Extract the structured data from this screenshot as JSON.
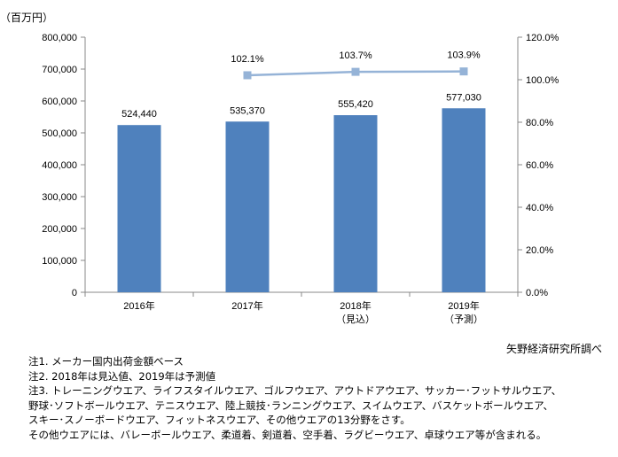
{
  "chart_data": {
    "type": "bar",
    "y_unit_label": "（百万円）",
    "categories": [
      [
        "2016年"
      ],
      [
        "2017年"
      ],
      [
        "2018年",
        "（見込）"
      ],
      [
        "2019年",
        "（予測）"
      ]
    ],
    "series": [
      {
        "type": "bar",
        "axis": "left",
        "values": [
          524440,
          535370,
          555420,
          577030
        ],
        "labels": [
          "524,440",
          "535,370",
          "555,420",
          "577,030"
        ],
        "color": "#4F81BD"
      },
      {
        "type": "line",
        "axis": "right",
        "values": [
          null,
          102.1,
          103.7,
          103.9
        ],
        "labels": [
          "",
          "102.1%",
          "103.7%",
          "103.9%"
        ],
        "color": "#95B3D7"
      }
    ],
    "ylim_left": [
      0,
      800000
    ],
    "yticks_left": [
      0,
      100000,
      200000,
      300000,
      400000,
      500000,
      600000,
      700000,
      800000
    ],
    "ytick_labels_left": [
      "0",
      "100,000",
      "200,000",
      "300,000",
      "400,000",
      "500,000",
      "600,000",
      "700,000",
      "800,000"
    ],
    "ylim_right": [
      0,
      120
    ],
    "yticks_right": [
      0,
      20,
      40,
      60,
      80,
      100,
      120
    ],
    "ytick_labels_right": [
      "0.0%",
      "20.0%",
      "40.0%",
      "60.0%",
      "80.0%",
      "100.0%",
      "120.0%"
    ],
    "grid": false,
    "legend": "none"
  },
  "source": "矢野経済研究所調べ",
  "notes": [
    "注1. メーカー国内出荷金額ベース",
    "注2. 2018年は見込値、2019年は予測値",
    "注3. トレーニングウエア、ライフスタイルウエア、ゴルフウエア、アウトドアウエア、サッカー･フットサルウエア、",
    "野球･ソフトボールウエア、テニスウエア、陸上競技･ランニングウエア、スイムウエア、バスケットボールウエア、",
    "スキー･スノーボードウエア、フィットネスウエア、その他ウエアの13分野をさす。",
    "その他ウエアには、バレーボールウエア、柔道着、剣道着、空手着、ラグビーウエア、卓球ウエア等が含まれる。"
  ]
}
